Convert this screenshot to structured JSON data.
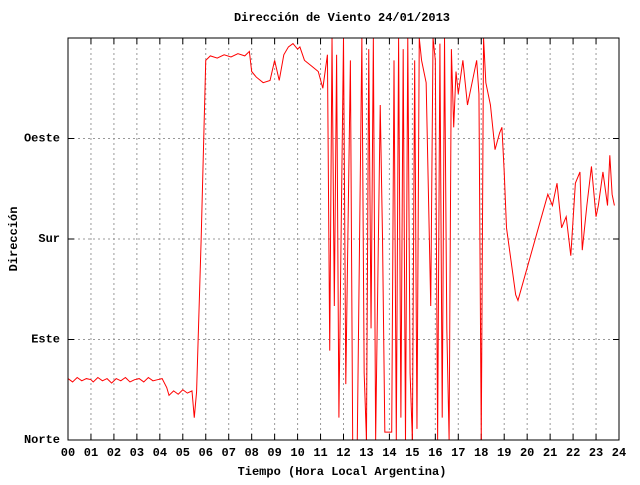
{
  "chart_data": {
    "type": "line",
    "title": "Dirección de Viento 24/01/2013",
    "x_label": "Tiempo (Hora Local Argentina)",
    "y_label": "Dirección",
    "color": "#ff0000",
    "grid": true,
    "xlim": [
      0,
      24
    ],
    "ylim": [
      0,
      360
    ],
    "xticks": [
      {
        "value": 0,
        "label": "00"
      },
      {
        "value": 1,
        "label": "01"
      },
      {
        "value": 2,
        "label": "02"
      },
      {
        "value": 3,
        "label": "03"
      },
      {
        "value": 4,
        "label": "04"
      },
      {
        "value": 5,
        "label": "05"
      },
      {
        "value": 6,
        "label": "06"
      },
      {
        "value": 7,
        "label": "07"
      },
      {
        "value": 8,
        "label": "08"
      },
      {
        "value": 9,
        "label": "09"
      },
      10,
      11,
      12,
      13,
      14,
      15,
      16,
      17,
      18,
      19,
      20,
      21,
      22,
      23,
      24
    ],
    "yticks": [
      {
        "value": 0,
        "label": "Norte"
      },
      {
        "value": 90,
        "label": "Este"
      },
      {
        "value": 180,
        "label": "Sur"
      },
      {
        "value": 270,
        "label": "Oeste"
      }
    ],
    "x": [
      0.0,
      0.2,
      0.4,
      0.6,
      0.8,
      1.0,
      1.1,
      1.3,
      1.5,
      1.7,
      1.9,
      2.1,
      2.3,
      2.5,
      2.7,
      2.9,
      3.1,
      3.3,
      3.5,
      3.7,
      3.9,
      4.1,
      4.3,
      4.4,
      4.6,
      4.8,
      5.0,
      5.2,
      5.4,
      5.5,
      5.6,
      5.8,
      6.0,
      6.2,
      6.5,
      6.8,
      7.1,
      7.4,
      7.7,
      7.9,
      8.0,
      8.2,
      8.5,
      8.8,
      9.0,
      9.2,
      9.4,
      9.6,
      9.8,
      10.0,
      10.1,
      10.3,
      10.6,
      10.9,
      11.1,
      11.3,
      11.4,
      11.5,
      11.6,
      11.7,
      11.8,
      12.0,
      12.1,
      12.3,
      12.4,
      12.6,
      12.8,
      12.9,
      13.0,
      13.1,
      13.2,
      13.3,
      13.4,
      13.6,
      13.7,
      13.8,
      14.1,
      14.2,
      14.3,
      14.4,
      14.5,
      14.6,
      14.7,
      14.8,
      14.9,
      15.0,
      15.1,
      15.2,
      15.3,
      15.4,
      15.5,
      15.6,
      15.8,
      15.9,
      16.0,
      16.1,
      16.2,
      16.3,
      16.4,
      16.5,
      16.6,
      16.7,
      16.8,
      16.9,
      17.0,
      17.2,
      17.4,
      17.6,
      17.8,
      17.9,
      18.0,
      18.1,
      18.2,
      18.4,
      18.6,
      18.8,
      18.9,
      19.0,
      19.1,
      19.3,
      19.5,
      19.6,
      20.9,
      21.1,
      21.3,
      21.5,
      21.7,
      21.9,
      22.1,
      22.3,
      22.4,
      22.6,
      22.8,
      23.0,
      23.1,
      23.3,
      23.5,
      23.6,
      23.7,
      23.8
    ],
    "values": [
      55,
      52,
      56,
      53,
      55,
      54,
      52,
      56,
      53,
      55,
      51,
      55,
      53,
      56,
      52,
      54,
      55,
      52,
      56,
      53,
      54,
      55,
      47,
      40,
      44,
      41,
      45,
      42,
      44,
      20,
      43,
      180,
      340,
      344,
      342,
      345,
      343,
      346,
      344,
      348,
      330,
      325,
      320,
      322,
      340,
      322,
      345,
      352,
      355,
      350,
      352,
      340,
      335,
      330,
      315,
      345,
      80,
      360,
      120,
      345,
      20,
      360,
      50,
      340,
      0,
      0,
      360,
      60,
      0,
      350,
      100,
      360,
      0,
      300,
      180,
      7,
      7,
      340,
      0,
      360,
      20,
      350,
      0,
      360,
      60,
      0,
      340,
      10,
      360,
      340,
      330,
      320,
      120,
      360,
      340,
      0,
      355,
      20,
      360,
      100,
      0,
      350,
      280,
      330,
      310,
      340,
      300,
      320,
      340,
      310,
      0,
      360,
      320,
      300,
      260,
      275,
      280,
      240,
      190,
      160,
      130,
      125,
      220,
      210,
      230,
      190,
      200,
      165,
      230,
      240,
      170,
      210,
      245,
      200,
      210,
      240,
      210,
      255,
      220,
      210
    ]
  }
}
